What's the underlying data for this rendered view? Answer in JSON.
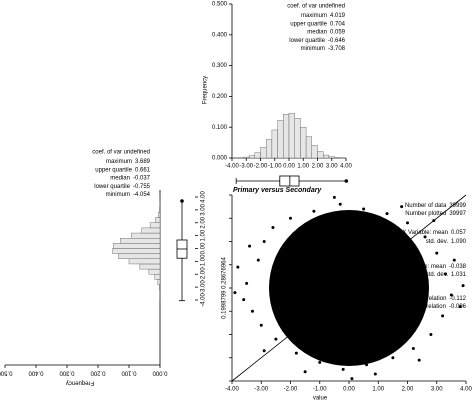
{
  "chart_data": [
    {
      "type": "histogram",
      "orientation": "vertical",
      "color": "#e6e6e6",
      "bins": [
        -4,
        -3.6,
        -3.2,
        -2.8,
        -2.4,
        -2,
        -1.6,
        -1.2,
        -0.8,
        -0.4,
        0,
        0.4,
        0.8,
        1.2,
        1.6,
        2,
        2.4,
        2.8,
        3.2,
        3.6,
        4
      ],
      "values": [
        0.0003,
        0.001,
        0.003,
        0.0075,
        0.017,
        0.035,
        0.06,
        0.091,
        0.122,
        0.142,
        0.145,
        0.129,
        0.1,
        0.069,
        0.041,
        0.021,
        0.0096,
        0.004,
        0.0013,
        0.0004
      ],
      "xlim": [
        -4,
        4
      ],
      "xticks": [
        {
          "value": -4,
          "label": "-4.00"
        },
        {
          "value": -3,
          "label": "-3.00"
        },
        {
          "value": -2,
          "label": "-2.00"
        },
        {
          "value": -1,
          "label": "-1.00"
        },
        {
          "value": 0,
          "label": "0.00"
        },
        {
          "value": 1,
          "label": "1.00"
        },
        {
          "value": 2,
          "label": "2.00"
        },
        {
          "value": 3,
          "label": "3.00"
        },
        {
          "value": 4,
          "label": "4.00"
        }
      ],
      "ylim": [
        0,
        0.5
      ],
      "yticks": [
        {
          "value": 0,
          "label": "0.000"
        },
        {
          "value": 0.1,
          "label": "0.100"
        },
        {
          "value": 0.2,
          "label": "0.200"
        },
        {
          "value": 0.3,
          "label": "0.300"
        },
        {
          "value": 0.4,
          "label": "0.400"
        },
        {
          "value": 0.5,
          "label": "0.500"
        }
      ],
      "y_label": "Frequency",
      "coef_of_var": "coef. of var undefined",
      "stats": [
        {
          "label": "maximum",
          "value": 4.019
        },
        {
          "label": "upper quartile",
          "value": 0.704
        },
        {
          "label": "median",
          "value": 0.059
        },
        {
          "label": "lower quartile",
          "value": -0.646
        },
        {
          "label": "minimum",
          "value": -3.708
        }
      ]
    },
    {
      "type": "histogram",
      "orientation": "horizontal",
      "color": "#e6e6e6",
      "bins": [
        -4,
        -3.6,
        -3.2,
        -2.8,
        -2.4,
        -2,
        -1.6,
        -1.2,
        -0.8,
        -0.4,
        0,
        0.4,
        0.8,
        1.2,
        1.6,
        2,
        2.4,
        2.8,
        3.2,
        3.6,
        4
      ],
      "values": [
        0.0002,
        0.0008,
        0.0025,
        0.007,
        0.017,
        0.036,
        0.065,
        0.1,
        0.134,
        0.153,
        0.151,
        0.128,
        0.093,
        0.059,
        0.032,
        0.015,
        0.006,
        0.002,
        0.0006,
        0.0002
      ],
      "ylim": [
        -4,
        4
      ],
      "yticks": [
        {
          "value": -4,
          "label": "-4.00"
        },
        {
          "value": -3,
          "label": "-3.00"
        },
        {
          "value": -2,
          "label": "-2.00"
        },
        {
          "value": -1,
          "label": "-1.00"
        },
        {
          "value": 0,
          "label": "0.00"
        },
        {
          "value": 1,
          "label": "1.00"
        },
        {
          "value": 2,
          "label": "2.00"
        },
        {
          "value": 3,
          "label": "3.00"
        },
        {
          "value": 4,
          "label": "4.00"
        }
      ],
      "xlim": [
        0,
        0.5
      ],
      "xticks": [
        {
          "value": 0,
          "label": "0.000"
        },
        {
          "value": 0.1,
          "label": "0.100"
        },
        {
          "value": 0.2,
          "label": "0.200"
        },
        {
          "value": 0.3,
          "label": "0.300"
        },
        {
          "value": 0.4,
          "label": "0.400"
        },
        {
          "value": 0.5,
          "label": "0.500"
        }
      ],
      "x_label": "Frequency",
      "coef_of_var": "coef. of var undefined",
      "stats": [
        {
          "label": "maximum",
          "value": 3.689
        },
        {
          "label": "upper quartile",
          "value": 0.661
        },
        {
          "label": "median",
          "value": -0.037
        },
        {
          "label": "lower quartile",
          "value": -0.755
        },
        {
          "label": "minimum",
          "value": -4.054
        }
      ]
    },
    {
      "type": "scatter",
      "title": "Primary versus Secondary",
      "x_label": "value",
      "y_label": "0.1998799 0.28676964",
      "color": "#000000",
      "x": [
        -3.5,
        -3.3,
        -3.1,
        -3.6,
        -2.9,
        -2.6,
        -2,
        -1.2,
        -0.3,
        0.5,
        1.3,
        2,
        2.6,
        3,
        3.3,
        3.5,
        3.2,
        2.8,
        2.2,
        1.5,
        0.6,
        -0.2,
        -1,
        -1.8,
        -2.5,
        -3,
        -3.8,
        3.8,
        0.1,
        -0.5,
        2.9,
        -2.9,
        3.6,
        -3.4,
        1.8,
        -1.5,
        0.9,
        3.9,
        -3.9,
        2.4
      ],
      "y": [
        0.2,
        -1,
        1.2,
        -0.5,
        2,
        2.6,
        3,
        3.3,
        3.6,
        3.4,
        3.2,
        2.8,
        2.2,
        1.5,
        0.6,
        -0.3,
        -1.2,
        -2,
        -2.6,
        -3,
        -3.3,
        -3.5,
        -3.2,
        -2.8,
        -2.2,
        -1.6,
        0.9,
        -0.8,
        -3.9,
        3.9,
        2.9,
        -2.7,
        1.2,
        1.8,
        3.5,
        -3.6,
        -3.7,
        0.1,
        -0.2,
        -3.1
      ],
      "xlim": [
        -4,
        4
      ],
      "xticks": [
        {
          "value": -4,
          "label": "-4.00"
        },
        {
          "value": -3,
          "label": "-3.00"
        },
        {
          "value": -2,
          "label": "-2.00"
        },
        {
          "value": -1,
          "label": "-1.00"
        },
        {
          "value": 0,
          "label": "0.00"
        },
        {
          "value": 1,
          "label": "1.00"
        },
        {
          "value": 2,
          "label": "2.00"
        },
        {
          "value": 3,
          "label": "3.00"
        },
        {
          "value": 4,
          "label": "4.00"
        }
      ],
      "ylim": [
        -4,
        4
      ],
      "yticks": [
        {
          "value": -4,
          "label": "-4.00"
        },
        {
          "value": -3,
          "label": "-3.00"
        },
        {
          "value": -2,
          "label": "-2.00"
        },
        {
          "value": -1,
          "label": "-1.00"
        },
        {
          "value": 0,
          "label": "0.00"
        },
        {
          "value": 1,
          "label": "1.00"
        },
        {
          "value": 2,
          "label": "2.00"
        },
        {
          "value": 3,
          "label": "3.00"
        },
        {
          "value": 4,
          "label": "4.00"
        }
      ],
      "stats": [
        {
          "label": "Number of data",
          "value": 39999
        },
        {
          "label": "Number plotted",
          "value": 39997
        },
        {
          "label": "X Variable: mean",
          "value": 0.057
        },
        {
          "label": "std. dev.",
          "value": 1.09,
          "value_label": "1.090"
        },
        {
          "label": "Y Variable: mean",
          "value": -0.038
        },
        {
          "label": "std. dev.",
          "value": 1.031
        },
        {
          "label": "correlation",
          "value": -0.112
        },
        {
          "label": "rank correlation",
          "value": -0.096
        }
      ]
    }
  ]
}
